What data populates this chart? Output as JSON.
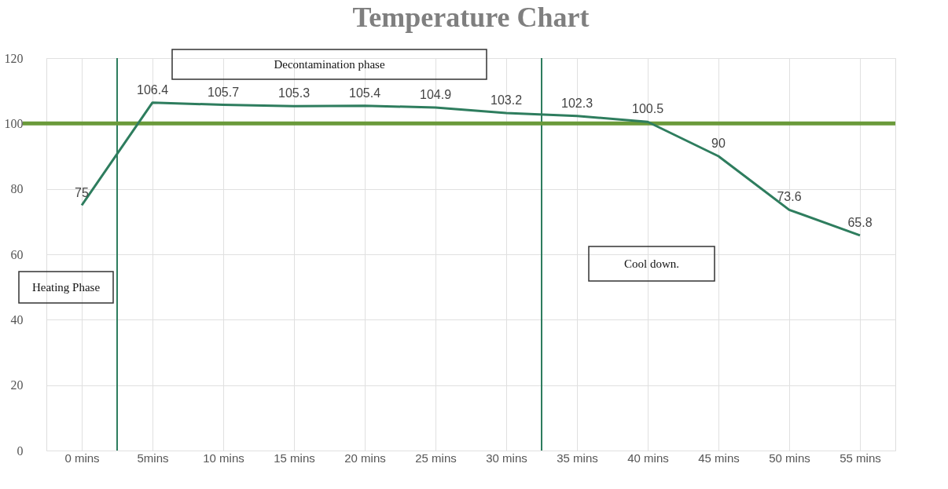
{
  "chart_data": {
    "type": "line",
    "title": "Temperature Chart",
    "x": [
      0,
      5,
      10,
      15,
      20,
      25,
      30,
      35,
      40,
      45,
      50,
      55
    ],
    "xlim": [
      -2.5,
      57.5
    ],
    "xticks": [
      {
        "value": 0,
        "label": "0 mins"
      },
      {
        "value": 5,
        "label": "5mins"
      },
      {
        "value": 10,
        "label": "10 mins"
      },
      {
        "value": 15,
        "label": "15 mins"
      },
      {
        "value": 20,
        "label": "20 mins"
      },
      {
        "value": 25,
        "label": "25 mins"
      },
      {
        "value": 30,
        "label": "30 mins"
      },
      {
        "value": 35,
        "label": "35 mins"
      },
      {
        "value": 40,
        "label": "40 mins"
      },
      {
        "value": 45,
        "label": "45 mins"
      },
      {
        "value": 50,
        "label": "50 mins"
      },
      {
        "value": 55,
        "label": "55 mins"
      }
    ],
    "ylim": [
      0,
      120
    ],
    "yticks": [
      0,
      20,
      40,
      60,
      80,
      100,
      120
    ],
    "series": [
      {
        "color": "#2e7d5e",
        "values": [
          75,
          106.4,
          105.7,
          105.3,
          105.4,
          104.9,
          103.2,
          102.3,
          100.5,
          90,
          73.6,
          65.8
        ]
      }
    ],
    "data_labels": true,
    "grid": true,
    "marker": "none",
    "line_style": "solid",
    "ref_lines": [
      {
        "axis": "y",
        "value": 100,
        "color": "#6a9a3a"
      },
      {
        "axis": "x",
        "value": 2.5,
        "color": "#2e7d5e"
      },
      {
        "axis": "x",
        "value": 32.5,
        "color": "#2e7d5e"
      }
    ],
    "annotations": [
      "Decontamination phase",
      "Heating Phase",
      "Cool down."
    ]
  }
}
